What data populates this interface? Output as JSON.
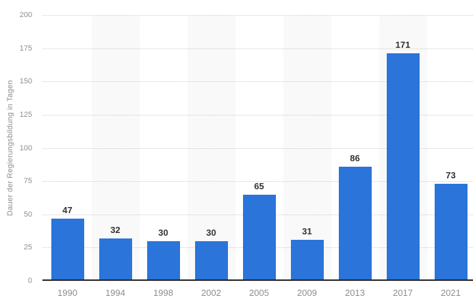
{
  "chart_data": {
    "type": "bar",
    "categories": [
      "1990",
      "1994",
      "1998",
      "2002",
      "2005",
      "2009",
      "2013",
      "2017",
      "2021"
    ],
    "values": [
      47,
      32,
      30,
      30,
      65,
      31,
      86,
      171,
      73
    ],
    "title": "",
    "xlabel": "",
    "ylabel": "Dauer der Regierungsbildung in Tagen",
    "ylim": [
      0,
      200
    ],
    "ytick_step": 25,
    "yticks": [
      0,
      25,
      50,
      75,
      100,
      125,
      150,
      175,
      200
    ],
    "grid": "horizontal-dotted",
    "legend": "none",
    "value_labels": true,
    "bar_color": "#2b74da",
    "band_color": "#f9f9f9",
    "gridline_color": "#cccccc",
    "axis_line_color": "#222222",
    "tick_label_color": "#8d8d8d",
    "value_label_color": "#333333",
    "banded_columns": "alternating starting at second category"
  }
}
